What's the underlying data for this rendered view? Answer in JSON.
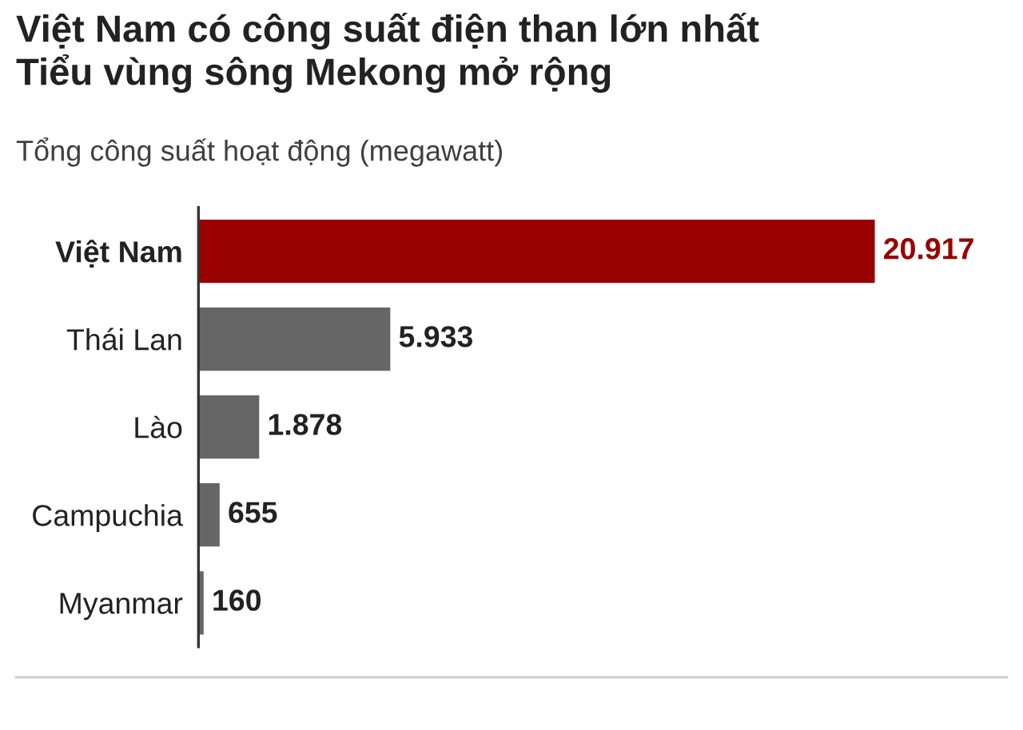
{
  "chart_data": {
    "type": "bar",
    "orientation": "horizontal",
    "title": "Việt Nam có công suất điện than lớn nhất\nTiểu vùng sông Mekong mở rộng",
    "subtitle": "Tổng công suất hoạt động (megawatt)",
    "categories": [
      "Việt Nam",
      "Thái Lan",
      "Lào",
      "Campuchia",
      "Myanmar"
    ],
    "values": [
      20917,
      5933,
      1878,
      655,
      160
    ],
    "colors": [
      "#990000",
      "#666666",
      "#666666",
      "#666666",
      "#666666"
    ],
    "value_labels": [
      "20.917",
      "5.933",
      "1.878",
      "655",
      "160"
    ]
  }
}
